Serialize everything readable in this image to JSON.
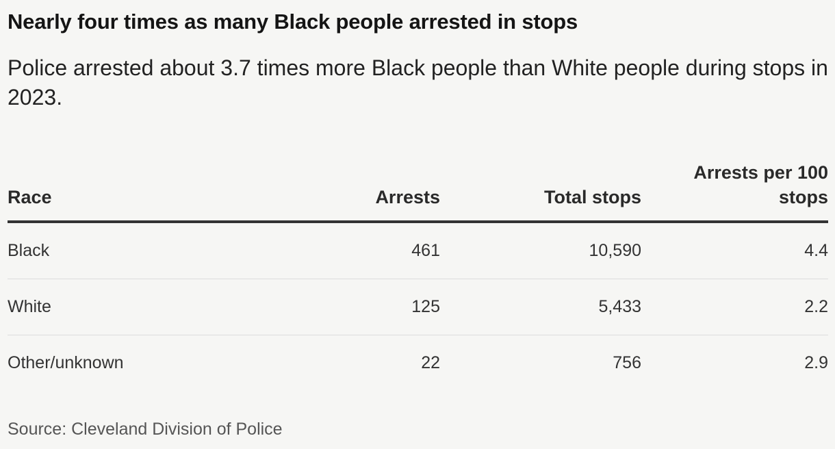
{
  "title": "Nearly four times as many Black people arrested in stops",
  "subtitle": "Police arrested about 3.7 times more Black people than White people during stops in 2023.",
  "source": "Source: Cleveland Division of Police",
  "chart_data": {
    "type": "table",
    "columns": [
      "Race",
      "Arrests",
      "Total stops",
      "Arrests per 100 stops"
    ],
    "rows": [
      [
        "Black",
        "461",
        "10,590",
        "4.4"
      ],
      [
        "White",
        "125",
        "5,433",
        "2.2"
      ],
      [
        "Other/unknown",
        "22",
        "756",
        "2.9"
      ]
    ]
  },
  "colors": {
    "background": "#f6f6f4",
    "text": "#222222",
    "header_rule": "#333333",
    "row_rule": "#dddddd"
  }
}
